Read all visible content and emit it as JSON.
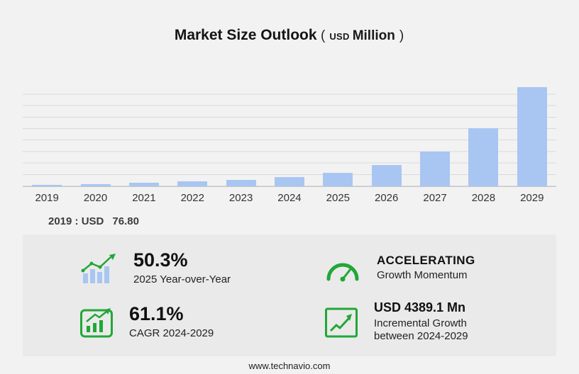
{
  "title": {
    "main": "Market Size Outlook",
    "paren_open": "(",
    "currency": "USD",
    "unit": "Million",
    "paren_close": ")"
  },
  "chart_data": {
    "type": "bar",
    "title": "Market Size Outlook (USD Million)",
    "categories": [
      "2019",
      "2020",
      "2021",
      "2022",
      "2023",
      "2024",
      "2025",
      "2026",
      "2027",
      "2028",
      "2029"
    ],
    "values": [
      76.8,
      110,
      158,
      225,
      320,
      446,
      670,
      1040,
      1690,
      2830,
      4835
    ],
    "xlabel": "",
    "ylabel": "USD Million",
    "ylim": [
      0,
      5000
    ],
    "grid": "horizontal",
    "legend": "none"
  },
  "baseline": {
    "prefix": "2019 : USD",
    "value": "76.80"
  },
  "stats": {
    "yoy": {
      "value": "50.3%",
      "label": "2025 Year-over-Year"
    },
    "momentum": {
      "value": "ACCELERATING",
      "label": "Growth Momentum"
    },
    "cagr": {
      "value": "61.1%",
      "label": "CAGR 2024-2029"
    },
    "incremental": {
      "value": "USD 4389.1 Mn",
      "label_line1": "Incremental Growth",
      "label_line2": "between 2024-2029"
    }
  },
  "footer": {
    "url": "www.technavio.com"
  },
  "colors": {
    "accent_green": "#21a737",
    "bar_blue": "#a9c6f2",
    "page_bg": "#f2f2f2",
    "panel_bg": "#eaeaea",
    "gridline": "#d9d9d9",
    "text_dark": "#1a1a1a"
  }
}
